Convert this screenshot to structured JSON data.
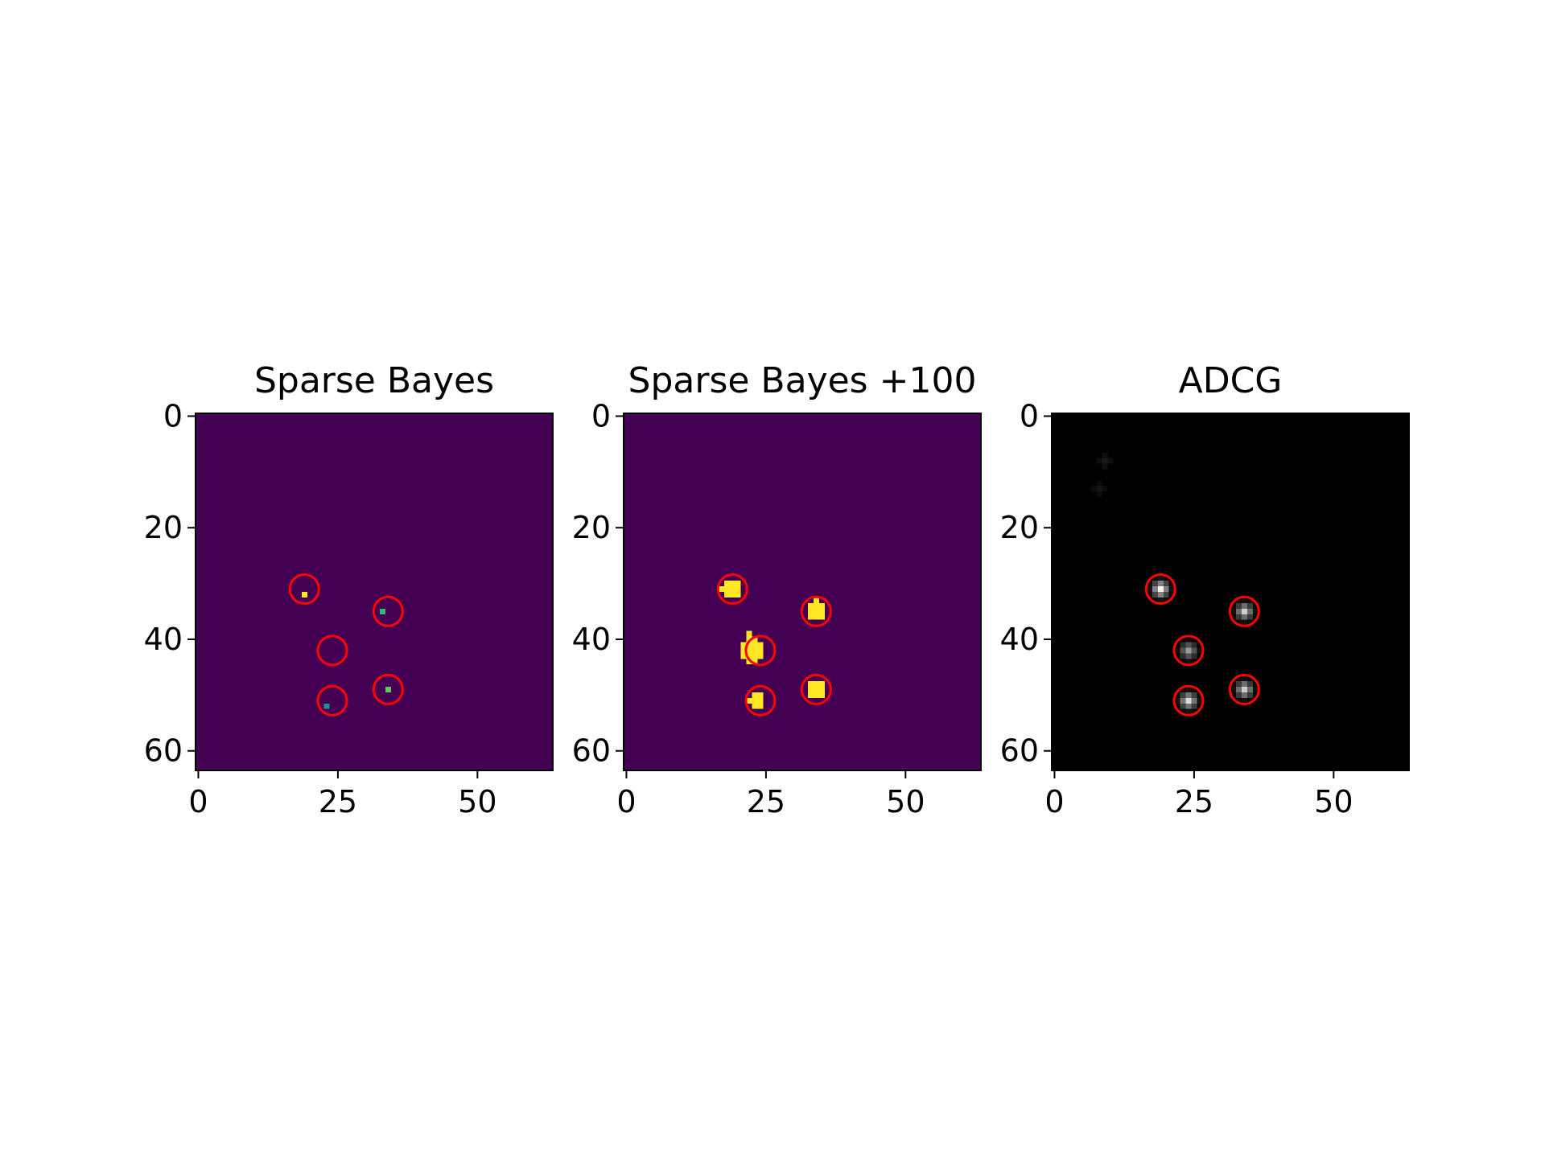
{
  "figure": {
    "background": "#ffffff",
    "marker_color": "#ff0000"
  },
  "chart_data": [
    {
      "type": "heatmap",
      "title": "Sparse Bayes",
      "colormap": "viridis",
      "background_color": "#440154",
      "image_size": 64,
      "xlim": [
        -0.5,
        63.5
      ],
      "ylim": [
        63.5,
        -0.5
      ],
      "xticks": [
        0,
        25,
        50
      ],
      "yticks": [
        0,
        20,
        40,
        60
      ],
      "markers": [
        {
          "x": 19,
          "y": 31
        },
        {
          "x": 34,
          "y": 35
        },
        {
          "x": 24,
          "y": 42
        },
        {
          "x": 24,
          "y": 51
        },
        {
          "x": 34,
          "y": 49
        }
      ],
      "bright_pixels": [
        {
          "x": 19,
          "y": 32,
          "w": 1,
          "h": 1,
          "color": "#fde725"
        },
        {
          "x": 33,
          "y": 35,
          "w": 1,
          "h": 1,
          "color": "#35b779"
        },
        {
          "x": 34,
          "y": 49,
          "w": 1,
          "h": 1,
          "color": "#5ec962"
        },
        {
          "x": 23,
          "y": 52,
          "w": 1,
          "h": 1,
          "color": "#21918c"
        }
      ]
    },
    {
      "type": "heatmap",
      "title": "Sparse Bayes +100",
      "colormap": "viridis",
      "background_color": "#440154",
      "image_size": 64,
      "xlim": [
        -0.5,
        63.5
      ],
      "ylim": [
        63.5,
        -0.5
      ],
      "xticks": [
        0,
        25,
        50
      ],
      "yticks": [
        0,
        20,
        40,
        60
      ],
      "markers": [
        {
          "x": 19,
          "y": 31
        },
        {
          "x": 34,
          "y": 35
        },
        {
          "x": 24,
          "y": 42
        },
        {
          "x": 24,
          "y": 51
        },
        {
          "x": 34,
          "y": 49
        }
      ],
      "bright_pixels": [
        {
          "x": 18,
          "y": 30,
          "w": 3,
          "h": 3,
          "color": "#fde725"
        },
        {
          "x": 17,
          "y": 31,
          "w": 1,
          "h": 1,
          "color": "#fde725"
        },
        {
          "x": 33,
          "y": 34,
          "w": 3,
          "h": 3,
          "color": "#fde725"
        },
        {
          "x": 34,
          "y": 33,
          "w": 1,
          "h": 1,
          "color": "#fde725"
        },
        {
          "x": 22,
          "y": 39,
          "w": 1,
          "h": 1,
          "color": "#fde725"
        },
        {
          "x": 22,
          "y": 40,
          "w": 2,
          "h": 5,
          "color": "#fde725"
        },
        {
          "x": 21,
          "y": 41,
          "w": 4,
          "h": 3,
          "color": "#fde725"
        },
        {
          "x": 24,
          "y": 41,
          "w": 1,
          "h": 3,
          "color": "#fde725"
        },
        {
          "x": 23,
          "y": 50,
          "w": 2,
          "h": 3,
          "color": "#fde725"
        },
        {
          "x": 22,
          "y": 51,
          "w": 1,
          "h": 1,
          "color": "#fde725"
        },
        {
          "x": 33,
          "y": 48,
          "w": 3,
          "h": 3,
          "color": "#fde725"
        }
      ]
    },
    {
      "type": "heatmap",
      "title": "ADCG",
      "colormap": "gray",
      "background_color": "#000000",
      "image_size": 64,
      "xlim": [
        -0.5,
        63.5
      ],
      "ylim": [
        63.5,
        -0.5
      ],
      "xticks": [
        0,
        25,
        50
      ],
      "yticks": [
        0,
        20,
        40,
        60
      ],
      "markers": [
        {
          "x": 19,
          "y": 31
        },
        {
          "x": 34,
          "y": 35
        },
        {
          "x": 24,
          "y": 42
        },
        {
          "x": 24,
          "y": 51
        },
        {
          "x": 34,
          "y": 49
        }
      ],
      "blobs": [
        {
          "x": 19,
          "y": 31,
          "peak": 0.95
        },
        {
          "x": 34,
          "y": 35,
          "peak": 0.8
        },
        {
          "x": 24,
          "y": 42,
          "peak": 0.6
        },
        {
          "x": 24,
          "y": 51,
          "peak": 0.85
        },
        {
          "x": 34,
          "y": 49,
          "peak": 0.8
        },
        {
          "x": 9,
          "y": 8,
          "peak": 0.1
        },
        {
          "x": 8,
          "y": 13,
          "peak": 0.08
        }
      ]
    }
  ]
}
